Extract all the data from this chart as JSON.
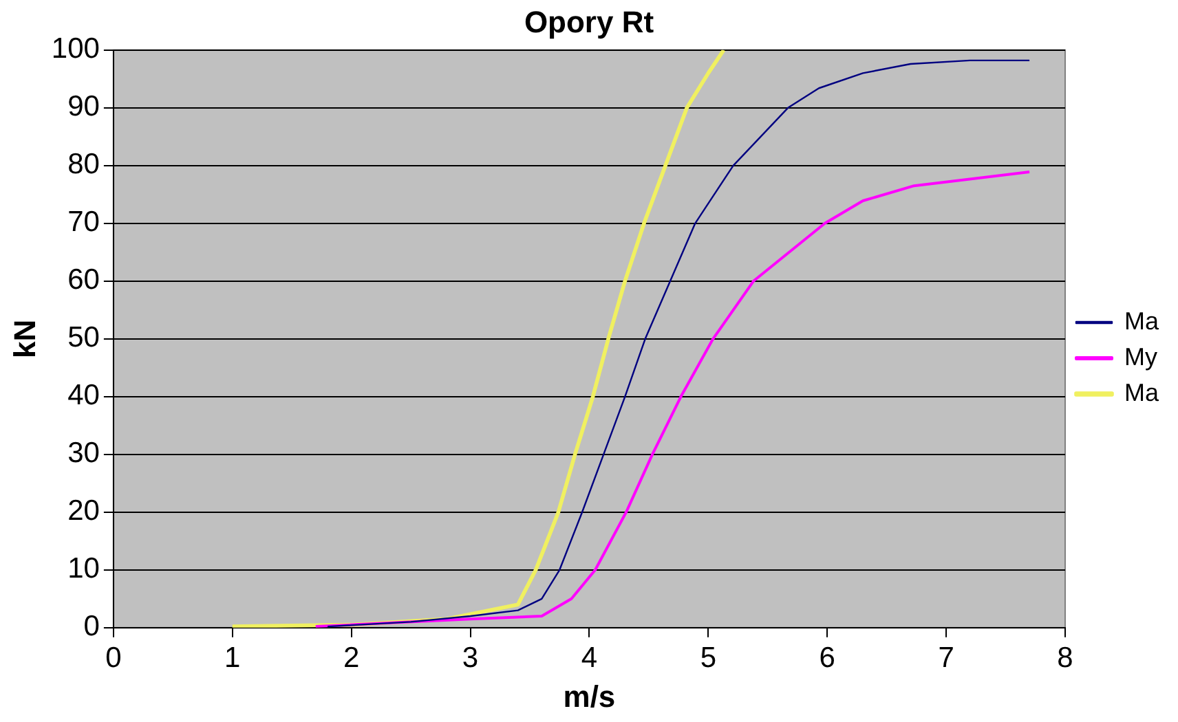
{
  "chart_data": {
    "type": "line",
    "title": "Opory Rt",
    "xlabel": "m/s",
    "ylabel": "kN",
    "xlim": [
      0,
      8
    ],
    "xticks": [
      0,
      1,
      2,
      3,
      4,
      5,
      6,
      7,
      8
    ],
    "ylim": [
      0,
      100
    ],
    "yticks": [
      0,
      10,
      20,
      30,
      40,
      50,
      60,
      70,
      80,
      90,
      100
    ],
    "grid": "y",
    "legend": "right",
    "marker": "none",
    "line_style": "solid",
    "series": [
      {
        "name": "Ma",
        "color": "#000080",
        "x": [
          1.8,
          2.5,
          3,
          3.4,
          3.6,
          3.75,
          3.94,
          4.12,
          4.3,
          4.47,
          4.68,
          4.89,
          5.21,
          5.67,
          5.93,
          6.3,
          6.7,
          7.2,
          7.7
        ],
        "values": [
          0.2,
          1,
          2,
          3,
          5,
          10,
          20,
          30,
          40,
          50,
          60,
          70,
          80,
          90,
          93.4,
          96,
          97.6,
          98.2,
          98.2
        ]
      },
      {
        "name": "My",
        "color": "#ff00ff",
        "x": [
          1.7,
          2,
          3,
          3.6,
          3.85,
          4.05,
          4.31,
          4.53,
          4.77,
          5.04,
          5.38,
          5.98,
          6.3,
          6.73,
          7.7
        ],
        "values": [
          0.2,
          0.5,
          1.5,
          2,
          5,
          10,
          20,
          30,
          40,
          50,
          60,
          70,
          73.9,
          76.5,
          78.9
        ]
      },
      {
        "name": "Ma",
        "color": "#f0f060",
        "x": [
          1,
          2,
          2.8,
          3.4,
          3.55,
          3.74,
          3.88,
          4.03,
          4.16,
          4.3,
          4.46,
          4.64,
          4.82,
          5,
          5.13
        ],
        "values": [
          0.2,
          0.5,
          1.5,
          4,
          10,
          20,
          30,
          40,
          50,
          60,
          70,
          80,
          90,
          96,
          100
        ]
      }
    ]
  }
}
